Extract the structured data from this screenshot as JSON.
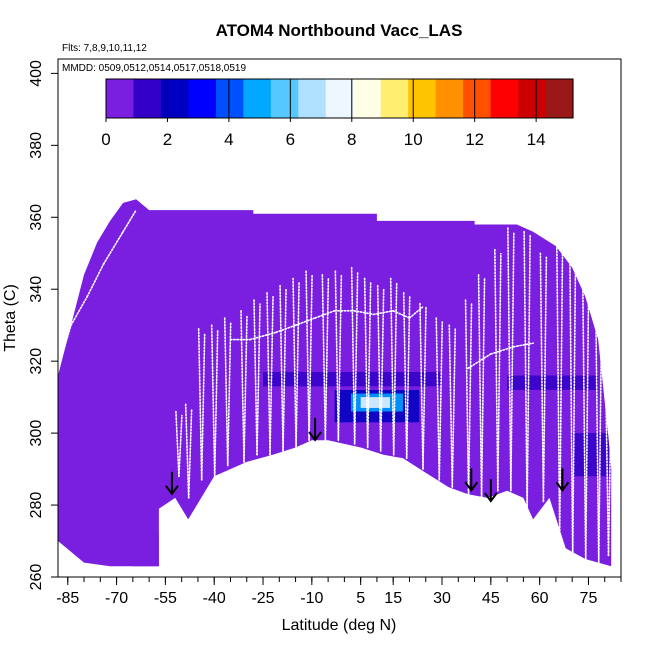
{
  "chart_data": {
    "type": "heatmap",
    "title": "ATOM4 Northbound Vacc_LAS",
    "header_lines": [
      "Flts: 7,8,9,10,11,12",
      "MMDD: 0509,0512,0514,0517,0518,0519"
    ],
    "xlabel": "Latitude (deg N)",
    "ylabel": "Theta (C)",
    "xlim": [
      -88,
      85
    ],
    "ylim": [
      260,
      404
    ],
    "x_ticks": [
      -85,
      -70,
      -55,
      -40,
      -25,
      -10,
      5,
      15,
      30,
      45,
      60,
      75
    ],
    "x_minor_step": 5,
    "y_ticks": [
      260,
      280,
      300,
      320,
      340,
      360,
      380,
      400
    ],
    "colorbar": {
      "min": 0,
      "max": 15.2,
      "ticks": [
        0,
        2,
        4,
        6,
        8,
        10,
        12,
        14
      ],
      "colors": [
        "#7a1fe0",
        "#3300c8",
        "#0000c0",
        "#0000ff",
        "#0050ff",
        "#00a8ff",
        "#55c8ff",
        "#b0e0ff",
        "#eef6ff",
        "#ffffe8",
        "#ffee70",
        "#ffc400",
        "#ff9000",
        "#ff5000",
        "#ff0000",
        "#cc0000",
        "#9a1818"
      ]
    },
    "background_value_color": "#7a1fe0",
    "coverage_top": [
      [
        -88,
        316
      ],
      [
        -84,
        330
      ],
      [
        -80,
        344
      ],
      [
        -76,
        353
      ],
      [
        -72,
        359
      ],
      [
        -68,
        364
      ],
      [
        -64,
        365
      ],
      [
        -60,
        362
      ],
      [
        -55,
        362
      ],
      [
        -45,
        362
      ],
      [
        -35,
        362
      ],
      [
        -28,
        362
      ],
      [
        -28,
        361
      ],
      [
        -5,
        361
      ],
      [
        10,
        361
      ],
      [
        10,
        359
      ],
      [
        35,
        359
      ],
      [
        40,
        359
      ],
      [
        40,
        358
      ],
      [
        53,
        358
      ],
      [
        58,
        356
      ],
      [
        65,
        352
      ],
      [
        70,
        346
      ],
      [
        74,
        338
      ],
      [
        78,
        326
      ],
      [
        81,
        300
      ],
      [
        82,
        290
      ]
    ],
    "coverage_bottom": [
      [
        -88,
        270
      ],
      [
        -80,
        264
      ],
      [
        -72,
        263
      ],
      [
        -60,
        263
      ],
      [
        -57,
        263
      ],
      [
        -57,
        279
      ],
      [
        -52,
        282
      ],
      [
        -48,
        276
      ],
      [
        -44,
        282
      ],
      [
        -40,
        288
      ],
      [
        -30,
        292
      ],
      [
        -22,
        294
      ],
      [
        -15,
        296
      ],
      [
        -10,
        298
      ],
      [
        -5,
        298
      ],
      [
        0,
        297
      ],
      [
        5,
        296
      ],
      [
        12,
        294
      ],
      [
        18,
        293
      ],
      [
        25,
        289
      ],
      [
        32,
        285
      ],
      [
        38,
        283
      ],
      [
        44,
        282
      ],
      [
        50,
        284
      ],
      [
        55,
        282
      ],
      [
        58,
        276
      ],
      [
        63,
        282
      ],
      [
        68,
        268
      ],
      [
        74,
        265
      ],
      [
        82,
        263
      ]
    ],
    "hotspots": [
      {
        "lat": [
          -3,
          23
        ],
        "theta": [
          303,
          312
        ],
        "value": 2
      },
      {
        "lat": [
          2,
          18
        ],
        "theta": [
          306,
          311
        ],
        "value": 5
      },
      {
        "lat": [
          5,
          14
        ],
        "theta": [
          307,
          310
        ],
        "value": 7.5
      },
      {
        "lat": [
          -25,
          30
        ],
        "theta": [
          313,
          317
        ],
        "value": 1
      },
      {
        "lat": [
          50,
          78
        ],
        "theta": [
          312,
          316
        ],
        "value": 1.5
      },
      {
        "lat": [
          70,
          82
        ],
        "theta": [
          288,
          300
        ],
        "value": 1.2
      },
      {
        "lat": [
          -65,
          -55
        ],
        "theta": [
          262,
          272
        ],
        "value": 0.4
      }
    ],
    "dive_tracks": [
      {
        "lat": -51,
        "min": 288,
        "max": 306
      },
      {
        "lat": -48,
        "min": 282,
        "max": 308
      },
      {
        "lat": -44,
        "min": 287,
        "max": 329
      },
      {
        "lat": -40,
        "min": 288,
        "max": 330
      },
      {
        "lat": -36,
        "min": 291,
        "max": 332
      },
      {
        "lat": -31,
        "min": 292,
        "max": 334
      },
      {
        "lat": -27,
        "min": 294,
        "max": 337
      },
      {
        "lat": -23,
        "min": 294,
        "max": 339
      },
      {
        "lat": -19,
        "min": 295,
        "max": 341
      },
      {
        "lat": -15,
        "min": 296,
        "max": 343
      },
      {
        "lat": -11,
        "min": 298,
        "max": 345
      },
      {
        "lat": -6,
        "min": 298,
        "max": 344
      },
      {
        "lat": -2,
        "min": 298,
        "max": 345
      },
      {
        "lat": 3,
        "min": 297,
        "max": 346
      },
      {
        "lat": 7,
        "min": 296,
        "max": 343
      },
      {
        "lat": 11,
        "min": 295,
        "max": 341
      },
      {
        "lat": 15,
        "min": 294,
        "max": 343
      },
      {
        "lat": 19,
        "min": 293,
        "max": 339
      },
      {
        "lat": 24,
        "min": 290,
        "max": 336
      },
      {
        "lat": 29,
        "min": 287,
        "max": 332
      },
      {
        "lat": 33,
        "min": 285,
        "max": 330
      },
      {
        "lat": 38,
        "min": 283,
        "max": 337
      },
      {
        "lat": 42,
        "min": 282,
        "max": 344
      },
      {
        "lat": 47,
        "min": 284,
        "max": 351
      },
      {
        "lat": 51,
        "min": 284,
        "max": 357
      },
      {
        "lat": 56,
        "min": 278,
        "max": 356
      },
      {
        "lat": 61,
        "min": 281,
        "max": 350
      },
      {
        "lat": 66,
        "min": 272,
        "max": 356
      },
      {
        "lat": 70,
        "min": 266,
        "max": 354
      },
      {
        "lat": 74,
        "min": 264,
        "max": 344
      },
      {
        "lat": 78,
        "min": 264,
        "max": 336
      },
      {
        "lat": 81,
        "min": 266,
        "max": 318
      }
    ],
    "ascent_tracks": [
      [
        [
          -88,
          318
        ],
        [
          -84,
          330
        ],
        [
          -79,
          338
        ],
        [
          -74,
          347
        ],
        [
          -68,
          356
        ],
        [
          -64,
          362
        ]
      ],
      [
        [
          -35,
          326
        ],
        [
          -29,
          326
        ],
        [
          -21,
          328
        ],
        [
          -15,
          330
        ],
        [
          -9,
          332
        ],
        [
          -3,
          334
        ],
        [
          3,
          334
        ],
        [
          9,
          333
        ],
        [
          15,
          334
        ],
        [
          20,
          332
        ],
        [
          24,
          335
        ]
      ],
      [
        [
          38,
          318
        ],
        [
          45,
          322
        ],
        [
          52,
          324
        ],
        [
          58,
          325
        ]
      ]
    ],
    "arrows": [
      {
        "lat": -53,
        "theta": 287
      },
      {
        "lat": -9,
        "theta": 302
      },
      {
        "lat": 39,
        "theta": 288
      },
      {
        "lat": 45,
        "theta": 285
      },
      {
        "lat": 67,
        "theta": 288
      }
    ]
  }
}
